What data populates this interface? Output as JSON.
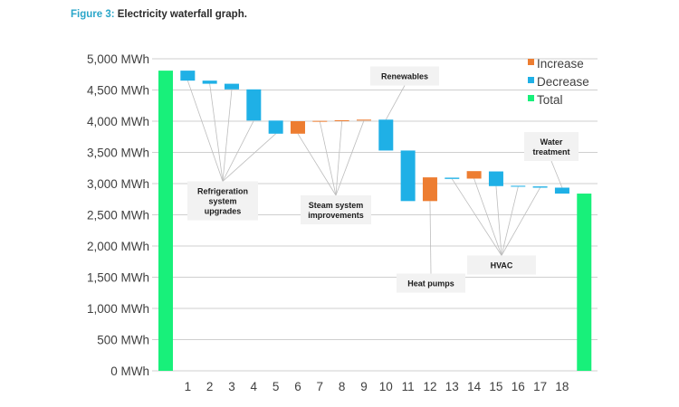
{
  "caption": {
    "label": "Figure 3:",
    "text": "Electricity waterfall graph."
  },
  "colors": {
    "increase": "#ED7D31",
    "decrease": "#1FB0E6",
    "total": "#18F07A",
    "grid": "#cfcfcf",
    "leader": "#bdbdbd",
    "annotation_box": "#f2f2f2"
  },
  "chart_data": {
    "type": "bar",
    "subtype": "waterfall",
    "title": "",
    "xlabel": "",
    "ylabel": "",
    "ylim": [
      0,
      5000
    ],
    "y_ticks": [
      0,
      500,
      1000,
      1500,
      2000,
      2500,
      3000,
      3500,
      4000,
      4500,
      5000
    ],
    "y_tick_labels": [
      "0 MWh",
      "500 MWh",
      "1,000 MWh",
      "1,500 MWh",
      "2,000 MWh",
      "2,500 MWh",
      "3,000 MWh",
      "3,500 MWh",
      "4,000 MWh",
      "4,500 MWh",
      "5,000 MWh"
    ],
    "grid": true,
    "legend": {
      "placement": "top-right",
      "entries": [
        {
          "label": "Increase",
          "kind": "increase"
        },
        {
          "label": "Decrease",
          "kind": "decrease"
        },
        {
          "label": "Total",
          "kind": "total"
        }
      ]
    },
    "bars": [
      {
        "category": "",
        "kind": "total",
        "low": 0,
        "high": 4810
      },
      {
        "category": "1",
        "kind": "decrease",
        "low": 4650,
        "high": 4810
      },
      {
        "category": "2",
        "kind": "decrease",
        "low": 4600,
        "high": 4650
      },
      {
        "category": "3",
        "kind": "decrease",
        "low": 4510,
        "high": 4600
      },
      {
        "category": "4",
        "kind": "decrease",
        "low": 4010,
        "high": 4510
      },
      {
        "category": "5",
        "kind": "decrease",
        "low": 3800,
        "high": 4010
      },
      {
        "category": "6",
        "kind": "increase",
        "low": 3800,
        "high": 4000
      },
      {
        "category": "7",
        "kind": "increase",
        "low": 3995,
        "high": 4005
      },
      {
        "category": "8",
        "kind": "increase",
        "low": 4000,
        "high": 4015
      },
      {
        "category": "9",
        "kind": "increase",
        "low": 4010,
        "high": 4025
      },
      {
        "category": "10",
        "kind": "decrease",
        "low": 3530,
        "high": 4025
      },
      {
        "category": "11",
        "kind": "decrease",
        "low": 2720,
        "high": 3530
      },
      {
        "category": "12",
        "kind": "increase",
        "low": 2720,
        "high": 3100
      },
      {
        "category": "13",
        "kind": "decrease",
        "low": 3075,
        "high": 3095
      },
      {
        "category": "14",
        "kind": "increase",
        "low": 3080,
        "high": 3200
      },
      {
        "category": "15",
        "kind": "decrease",
        "low": 2960,
        "high": 3195
      },
      {
        "category": "16",
        "kind": "decrease",
        "low": 2950,
        "high": 2965
      },
      {
        "category": "17",
        "kind": "decrease",
        "low": 2935,
        "high": 2955
      },
      {
        "category": "18",
        "kind": "decrease",
        "low": 2840,
        "high": 2935
      },
      {
        "category": "",
        "kind": "total",
        "low": 0,
        "high": 2840
      }
    ],
    "annotations": [
      {
        "lines": [
          "Refrigeration",
          "system",
          "upgrades"
        ],
        "bars": [
          1,
          2,
          3,
          4,
          5
        ]
      },
      {
        "lines": [
          "Steam system",
          "improvements"
        ],
        "bars": [
          6,
          7,
          8,
          9
        ]
      },
      {
        "lines": [
          "Renewables"
        ],
        "bars": [
          10
        ]
      },
      {
        "lines": [
          "Heat pumps"
        ],
        "bars": [
          12
        ]
      },
      {
        "lines": [
          "HVAC"
        ],
        "bars": [
          13,
          14,
          15,
          16,
          17
        ]
      },
      {
        "lines": [
          "Water",
          "treatment"
        ],
        "bars": [
          18
        ]
      }
    ]
  }
}
